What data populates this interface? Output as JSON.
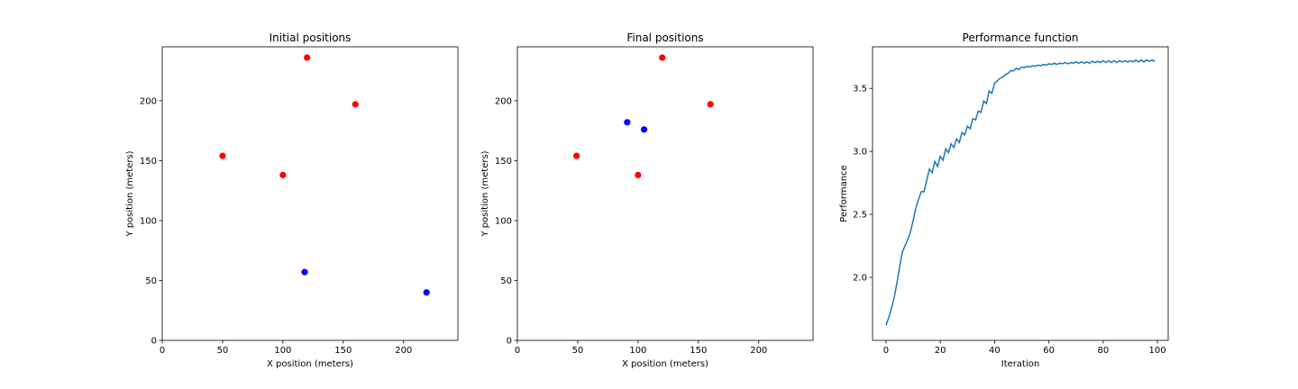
{
  "chart_data": [
    {
      "type": "scatter",
      "title": "Initial positions",
      "xlabel": "X position (meters)",
      "ylabel": "Y position (meters)",
      "xlim": [
        0,
        245
      ],
      "ylim": [
        0,
        245
      ],
      "xticks": [
        0,
        50,
        100,
        150,
        200
      ],
      "yticks": [
        0,
        50,
        100,
        150,
        200
      ],
      "grid": false,
      "series": [
        {
          "color": "#ff0000",
          "points": [
            [
              120,
              236
            ],
            [
              160,
              197
            ],
            [
              50,
              154
            ],
            [
              100,
              138
            ]
          ]
        },
        {
          "color": "#0000ff",
          "points": [
            [
              118,
              57
            ],
            [
              219,
              40
            ]
          ]
        }
      ]
    },
    {
      "type": "scatter",
      "title": "Final positions",
      "xlabel": "X position (meters)",
      "ylabel": "Y position (meters)",
      "xlim": [
        0,
        245
      ],
      "ylim": [
        0,
        245
      ],
      "xticks": [
        0,
        50,
        100,
        150,
        200
      ],
      "yticks": [
        0,
        50,
        100,
        150,
        200
      ],
      "grid": false,
      "series": [
        {
          "color": "#ff0000",
          "points": [
            [
              120,
              236
            ],
            [
              160,
              197
            ],
            [
              49,
              154
            ],
            [
              100,
              138
            ]
          ]
        },
        {
          "color": "#0000ff",
          "points": [
            [
              91,
              182
            ],
            [
              105,
              176
            ]
          ]
        }
      ]
    },
    {
      "type": "line",
      "title": "Performance function",
      "xlabel": "Iteration",
      "ylabel": "Performance",
      "xlim": [
        -4.95,
        103.95
      ],
      "ylim": [
        1.5,
        3.83
      ],
      "xticks": [
        0,
        20,
        40,
        60,
        80,
        100
      ],
      "yticks": [
        2.0,
        2.5,
        3.0,
        3.5
      ],
      "ytick_labels": [
        "2.0",
        "2.5",
        "3.0",
        "3.5"
      ],
      "grid": false,
      "series": [
        {
          "color": "#1f77b4",
          "x": [
            0,
            1,
            2,
            3,
            4,
            5,
            6,
            7,
            8,
            9,
            10,
            11,
            12,
            13,
            14,
            15,
            16,
            17,
            18,
            19,
            20,
            21,
            22,
            23,
            24,
            25,
            26,
            27,
            28,
            29,
            30,
            31,
            32,
            33,
            34,
            35,
            36,
            37,
            38,
            39,
            40,
            41,
            42,
            43,
            44,
            45,
            46,
            47,
            48,
            49,
            50,
            51,
            52,
            53,
            54,
            55,
            56,
            57,
            58,
            59,
            60,
            61,
            62,
            63,
            64,
            65,
            66,
            67,
            68,
            69,
            70,
            71,
            72,
            73,
            74,
            75,
            76,
            77,
            78,
            79,
            80,
            81,
            82,
            83,
            84,
            85,
            86,
            87,
            88,
            89,
            90,
            91,
            92,
            93,
            94,
            95,
            96,
            97,
            98,
            99
          ],
          "y": [
            1.62,
            1.68,
            1.75,
            1.84,
            1.95,
            2.08,
            2.2,
            2.25,
            2.3,
            2.36,
            2.45,
            2.55,
            2.62,
            2.68,
            2.68,
            2.77,
            2.86,
            2.83,
            2.92,
            2.88,
            2.96,
            2.93,
            3.02,
            2.99,
            3.06,
            3.03,
            3.1,
            3.07,
            3.15,
            3.13,
            3.2,
            3.18,
            3.26,
            3.25,
            3.32,
            3.31,
            3.4,
            3.38,
            3.48,
            3.46,
            3.54,
            3.56,
            3.58,
            3.59,
            3.61,
            3.62,
            3.64,
            3.64,
            3.66,
            3.65,
            3.67,
            3.665,
            3.675,
            3.67,
            3.68,
            3.675,
            3.685,
            3.68,
            3.69,
            3.685,
            3.695,
            3.69,
            3.7,
            3.69,
            3.7,
            3.695,
            3.705,
            3.695,
            3.705,
            3.7,
            3.71,
            3.7,
            3.71,
            3.7,
            3.71,
            3.7,
            3.715,
            3.705,
            3.715,
            3.705,
            3.72,
            3.705,
            3.72,
            3.705,
            3.72,
            3.705,
            3.72,
            3.71,
            3.72,
            3.71,
            3.72,
            3.71,
            3.725,
            3.71,
            3.725,
            3.71,
            3.725,
            3.715,
            3.725,
            3.715
          ]
        }
      ]
    }
  ]
}
